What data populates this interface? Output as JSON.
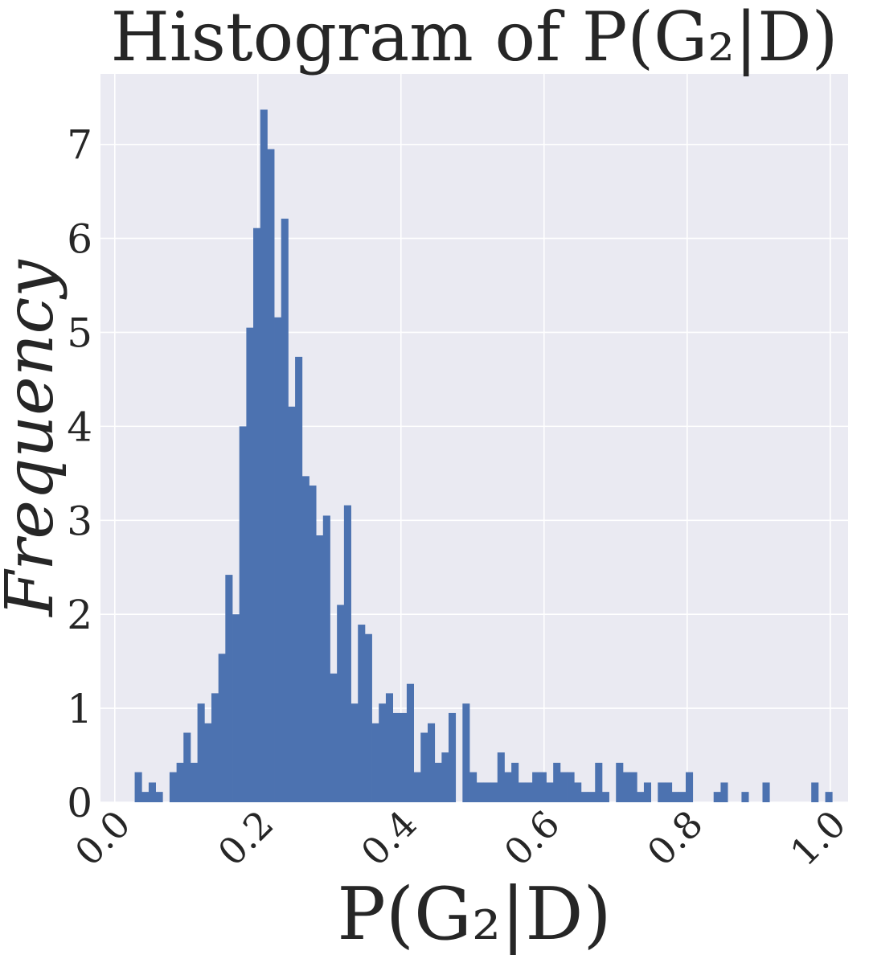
{
  "chart_data": {
    "type": "bar",
    "title": "Histogram of P(G₂|D)",
    "xlabel": "P(G₂|D)",
    "ylabel": "Frequency",
    "xlim": [
      -0.02,
      1.025
    ],
    "ylim": [
      0,
      7.75
    ],
    "x_ticks": [
      "0.0",
      "0.2",
      "0.4",
      "0.6",
      "0.8",
      "1.0"
    ],
    "y_ticks": [
      "0",
      "1",
      "2",
      "3",
      "4",
      "5",
      "6",
      "7"
    ],
    "grid": true,
    "background_color": "#eaeaf2",
    "bar_color": "#4c72b0",
    "bin_width": 0.00975,
    "bins": [
      {
        "x": 0.0327,
        "y": 0.32
      },
      {
        "x": 0.0424,
        "y": 0.11
      },
      {
        "x": 0.0522,
        "y": 0.21
      },
      {
        "x": 0.0619,
        "y": 0.11
      },
      {
        "x": 0.0814,
        "y": 0.32
      },
      {
        "x": 0.0912,
        "y": 0.42
      },
      {
        "x": 0.1009,
        "y": 0.74
      },
      {
        "x": 0.1107,
        "y": 0.42
      },
      {
        "x": 0.1204,
        "y": 1.05
      },
      {
        "x": 0.1302,
        "y": 0.84
      },
      {
        "x": 0.1399,
        "y": 1.16
      },
      {
        "x": 0.1497,
        "y": 1.58
      },
      {
        "x": 0.1594,
        "y": 2.42
      },
      {
        "x": 0.1692,
        "y": 2.0
      },
      {
        "x": 0.1789,
        "y": 4.0
      },
      {
        "x": 0.1887,
        "y": 5.05
      },
      {
        "x": 0.1984,
        "y": 6.11
      },
      {
        "x": 0.2082,
        "y": 7.37
      },
      {
        "x": 0.2179,
        "y": 6.95
      },
      {
        "x": 0.2277,
        "y": 5.16
      },
      {
        "x": 0.2374,
        "y": 6.21
      },
      {
        "x": 0.2472,
        "y": 4.21
      },
      {
        "x": 0.2569,
        "y": 4.74
      },
      {
        "x": 0.2667,
        "y": 3.47
      },
      {
        "x": 0.2764,
        "y": 3.37
      },
      {
        "x": 0.2862,
        "y": 2.84
      },
      {
        "x": 0.2959,
        "y": 3.05
      },
      {
        "x": 0.3057,
        "y": 1.37
      },
      {
        "x": 0.3154,
        "y": 2.1
      },
      {
        "x": 0.3252,
        "y": 3.16
      },
      {
        "x": 0.3349,
        "y": 1.05
      },
      {
        "x": 0.3447,
        "y": 1.89
      },
      {
        "x": 0.3544,
        "y": 1.79
      },
      {
        "x": 0.3642,
        "y": 0.84
      },
      {
        "x": 0.3739,
        "y": 1.05
      },
      {
        "x": 0.3837,
        "y": 1.16
      },
      {
        "x": 0.3934,
        "y": 0.95
      },
      {
        "x": 0.4032,
        "y": 0.95
      },
      {
        "x": 0.4129,
        "y": 1.26
      },
      {
        "x": 0.4227,
        "y": 0.32
      },
      {
        "x": 0.4324,
        "y": 0.74
      },
      {
        "x": 0.4422,
        "y": 0.84
      },
      {
        "x": 0.4519,
        "y": 0.42
      },
      {
        "x": 0.4617,
        "y": 0.53
      },
      {
        "x": 0.4714,
        "y": 0.95
      },
      {
        "x": 0.4909,
        "y": 1.05
      },
      {
        "x": 0.5007,
        "y": 0.32
      },
      {
        "x": 0.5104,
        "y": 0.21
      },
      {
        "x": 0.5202,
        "y": 0.21
      },
      {
        "x": 0.5299,
        "y": 0.21
      },
      {
        "x": 0.5397,
        "y": 0.53
      },
      {
        "x": 0.5494,
        "y": 0.32
      },
      {
        "x": 0.5592,
        "y": 0.42
      },
      {
        "x": 0.5689,
        "y": 0.21
      },
      {
        "x": 0.5787,
        "y": 0.21
      },
      {
        "x": 0.5884,
        "y": 0.32
      },
      {
        "x": 0.5982,
        "y": 0.32
      },
      {
        "x": 0.6079,
        "y": 0.21
      },
      {
        "x": 0.6177,
        "y": 0.42
      },
      {
        "x": 0.6274,
        "y": 0.32
      },
      {
        "x": 0.6372,
        "y": 0.32
      },
      {
        "x": 0.6469,
        "y": 0.21
      },
      {
        "x": 0.6567,
        "y": 0.11
      },
      {
        "x": 0.6664,
        "y": 0.11
      },
      {
        "x": 0.6762,
        "y": 0.42
      },
      {
        "x": 0.6859,
        "y": 0.11
      },
      {
        "x": 0.7054,
        "y": 0.42
      },
      {
        "x": 0.7152,
        "y": 0.32
      },
      {
        "x": 0.7249,
        "y": 0.32
      },
      {
        "x": 0.7347,
        "y": 0.11
      },
      {
        "x": 0.7444,
        "y": 0.21
      },
      {
        "x": 0.7639,
        "y": 0.21
      },
      {
        "x": 0.7737,
        "y": 0.21
      },
      {
        "x": 0.7834,
        "y": 0.11
      },
      {
        "x": 0.7932,
        "y": 0.11
      },
      {
        "x": 0.8029,
        "y": 0.32
      },
      {
        "x": 0.8419,
        "y": 0.11
      },
      {
        "x": 0.8517,
        "y": 0.21
      },
      {
        "x": 0.8809,
        "y": 0.11
      },
      {
        "x": 0.9102,
        "y": 0.21
      },
      {
        "x": 0.9784,
        "y": 0.21
      },
      {
        "x": 0.9979,
        "y": 0.11
      }
    ]
  }
}
